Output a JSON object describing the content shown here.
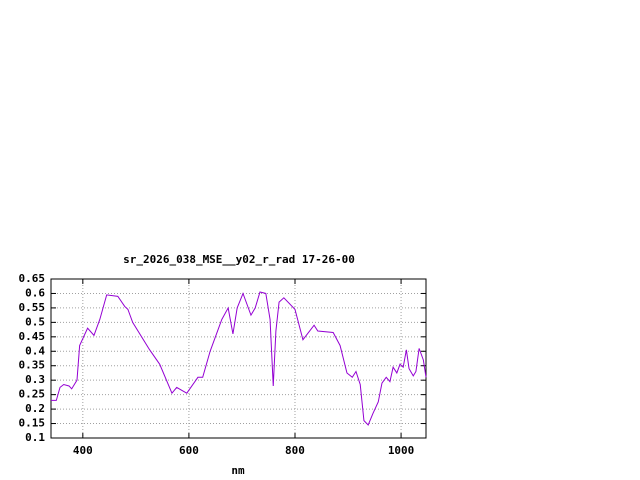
{
  "chart_data": {
    "type": "line",
    "title": "sr_2026_038_MSE__y02_r_rad 17-26-00",
    "x_label": "nm",
    "x": [
      340,
      350,
      357,
      364,
      374,
      379,
      389,
      394,
      409,
      421,
      432,
      445,
      466,
      479,
      485,
      494,
      526,
      545,
      568,
      577,
      596,
      617,
      626,
      640,
      662,
      674,
      683,
      691,
      702,
      717,
      725,
      734,
      745,
      753,
      759,
      764,
      770,
      779,
      800,
      815,
      836,
      843,
      872,
      885,
      898,
      908,
      915,
      923,
      930,
      938,
      947,
      957,
      964,
      972,
      979,
      985,
      992,
      998,
      1004,
      1010,
      1015,
      1023,
      1028,
      1034,
      1042,
      1047
    ],
    "series": [
      {
        "color": "#9400d3",
        "values": [
          0.23,
          0.23,
          0.275,
          0.285,
          0.28,
          0.27,
          0.3,
          0.42,
          0.48,
          0.455,
          0.51,
          0.595,
          0.59,
          0.555,
          0.545,
          0.5,
          0.405,
          0.355,
          0.255,
          0.275,
          0.255,
          0.31,
          0.31,
          0.4,
          0.51,
          0.55,
          0.46,
          0.55,
          0.6,
          0.525,
          0.55,
          0.605,
          0.6,
          0.51,
          0.28,
          0.47,
          0.57,
          0.585,
          0.545,
          0.44,
          0.49,
          0.47,
          0.465,
          0.42,
          0.325,
          0.31,
          0.33,
          0.285,
          0.16,
          0.145,
          0.185,
          0.225,
          0.29,
          0.31,
          0.295,
          0.345,
          0.325,
          0.355,
          0.345,
          0.405,
          0.34,
          0.315,
          0.33,
          0.41,
          0.37,
          0.31
        ]
      }
    ],
    "xlim": [
      340,
      1047
    ],
    "xticks": [
      400,
      600,
      800,
      1000
    ],
    "ylim": [
      0.1,
      0.65
    ],
    "yticks": [
      0.1,
      0.15,
      0.2,
      0.25,
      0.3,
      0.35,
      0.4,
      0.45,
      0.5,
      0.55,
      0.6,
      0.65
    ],
    "grid": true
  }
}
